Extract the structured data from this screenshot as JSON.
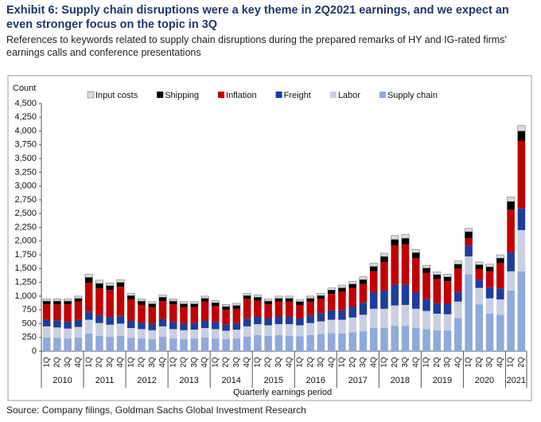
{
  "chart_data": {
    "type": "stacked_bar",
    "title": "Exhibit 6: Supply chain disruptions were a key theme in 2Q2021 earnings, and we expect an even stronger focus on the topic in 3Q",
    "subtitle": "References to keywords related to supply chain disruptions during the prepared remarks of HY and IG-rated firms' earnings calls and conference presentations",
    "y_label": "Count",
    "x_label": "Quarterly earnings period",
    "source": "Source: Company filings, Goldman Sachs Global Investment Research",
    "categories": [
      "1Q",
      "2Q",
      "3Q",
      "4Q",
      "1Q",
      "2Q",
      "3Q",
      "4Q",
      "1Q",
      "2Q",
      "3Q",
      "4Q",
      "1Q",
      "2Q",
      "3Q",
      "4Q",
      "1Q",
      "2Q",
      "3Q",
      "4Q",
      "1Q",
      "2Q",
      "3Q",
      "4Q",
      "1Q",
      "2Q",
      "3Q",
      "4Q",
      "1Q",
      "2Q",
      "3Q",
      "4Q",
      "1Q",
      "2Q",
      "3Q",
      "4Q",
      "1Q",
      "2Q",
      "3Q",
      "4Q",
      "1Q",
      "2Q",
      "3Q",
      "4Q",
      "1Q",
      "2Q"
    ],
    "years": [
      "2010",
      "2011",
      "2012",
      "2013",
      "2014",
      "2015",
      "2016",
      "2017",
      "2018",
      "2019",
      "2020",
      "2021"
    ],
    "series": [
      {
        "name": "Input costs",
        "color": "#d9d9d9",
        "values": [
          40,
          40,
          40,
          40,
          60,
          60,
          50,
          50,
          40,
          40,
          40,
          40,
          40,
          40,
          40,
          40,
          40,
          40,
          40,
          40,
          40,
          40,
          40,
          40,
          40,
          40,
          40,
          40,
          50,
          50,
          50,
          60,
          60,
          70,
          70,
          60,
          50,
          50,
          50,
          60,
          60,
          50,
          50,
          60,
          80,
          100
        ]
      },
      {
        "name": "Shipping",
        "color": "#000000",
        "values": [
          60,
          60,
          60,
          60,
          100,
          90,
          80,
          80,
          70,
          70,
          60,
          70,
          60,
          60,
          60,
          60,
          60,
          60,
          60,
          60,
          60,
          60,
          60,
          60,
          60,
          60,
          60,
          70,
          70,
          70,
          80,
          90,
          100,
          110,
          110,
          100,
          90,
          80,
          80,
          80,
          120,
          80,
          80,
          90,
          150,
          180
        ]
      },
      {
        "name": "Inflation",
        "color": "#c00000",
        "values": [
          280,
          290,
          310,
          330,
          520,
          490,
          490,
          530,
          390,
          320,
          300,
          330,
          320,
          300,
          290,
          350,
          290,
          260,
          260,
          360,
          290,
          250,
          270,
          270,
          240,
          250,
          260,
          300,
          330,
          340,
          340,
          380,
          520,
          710,
          730,
          620,
          470,
          440,
          410,
          420,
          130,
          190,
          290,
          460,
          770,
          1220
        ]
      },
      {
        "name": "Freight",
        "color": "#1f3c99",
        "values": [
          120,
          130,
          130,
          130,
          150,
          140,
          140,
          140,
          130,
          120,
          120,
          130,
          130,
          120,
          120,
          130,
          130,
          120,
          120,
          140,
          140,
          130,
          140,
          140,
          130,
          140,
          150,
          170,
          180,
          200,
          220,
          300,
          330,
          380,
          370,
          300,
          220,
          190,
          190,
          180,
          200,
          150,
          200,
          200,
          350,
          400
        ]
      },
      {
        "name": "Labor",
        "color": "#c9cfe0",
        "values": [
          200,
          190,
          180,
          190,
          250,
          230,
          220,
          220,
          180,
          170,
          160,
          190,
          170,
          160,
          160,
          170,
          170,
          150,
          160,
          190,
          200,
          190,
          200,
          210,
          200,
          220,
          230,
          240,
          250,
          270,
          300,
          350,
          350,
          370,
          380,
          350,
          330,
          300,
          290,
          300,
          320,
          300,
          280,
          280,
          350,
          750
        ]
      },
      {
        "name": "Supply chain",
        "color": "#8fa9dc",
        "values": [
          250,
          240,
          230,
          250,
          320,
          280,
          260,
          280,
          240,
          230,
          220,
          260,
          230,
          220,
          230,
          250,
          230,
          220,
          230,
          260,
          290,
          280,
          290,
          280,
          270,
          290,
          310,
          330,
          320,
          340,
          360,
          420,
          420,
          460,
          460,
          420,
          400,
          380,
          380,
          600,
          1400,
          850,
          680,
          660,
          1100,
          1450
        ]
      }
    ],
    "ylim": [
      0,
      4500
    ],
    "yticks": [
      0,
      250,
      500,
      750,
      {
        "value": 1000,
        "label": "1,000"
      },
      {
        "value": 1250,
        "label": "1,250"
      },
      {
        "value": 1500,
        "label": "1,500"
      },
      {
        "value": 1750,
        "label": "1,750"
      },
      {
        "value": 2000,
        "label": "2,000"
      },
      {
        "value": 2250,
        "label": "2,250"
      },
      {
        "value": 2500,
        "label": "2,500"
      },
      {
        "value": 2750,
        "label": "2,750"
      },
      {
        "value": 3000,
        "label": "3,000"
      },
      {
        "value": 3250,
        "label": "3,250"
      },
      {
        "value": 3500,
        "label": "3,500"
      },
      {
        "value": 3750,
        "label": "3,750"
      },
      {
        "value": 4000,
        "label": "4,000"
      },
      {
        "value": 4250,
        "label": "4,250"
      },
      {
        "value": 4500,
        "label": "4,500"
      }
    ],
    "grid": false
  }
}
